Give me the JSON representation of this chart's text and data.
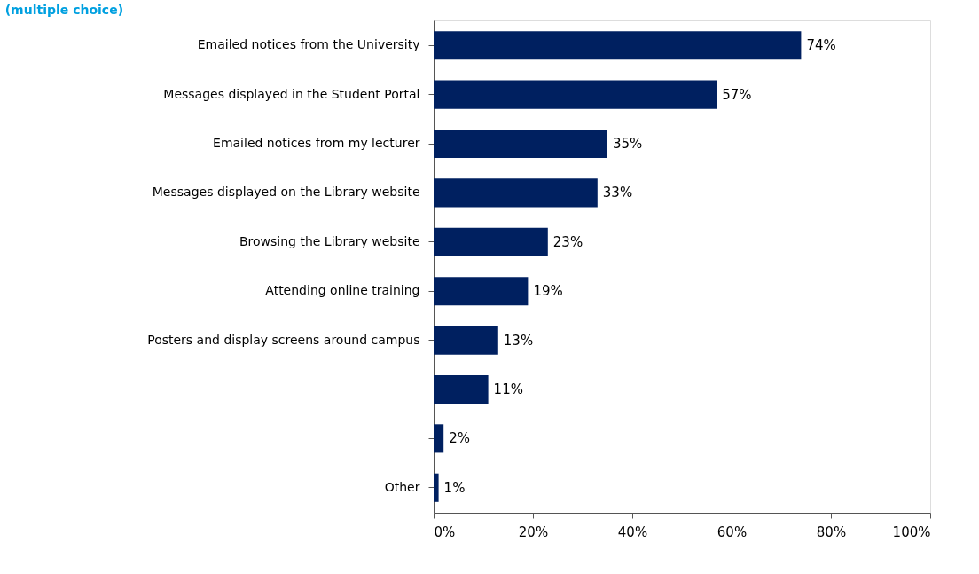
{
  "chart_data": {
    "type": "bar",
    "orientation": "horizontal",
    "subtitle": "(multiple choice)",
    "categories": [
      "Emailed notices from the University",
      "Messages displayed in the Student Portal",
      "Emailed notices from my lecturer",
      "Messages displayed on the Library website",
      "Browsing the Library website",
      "Attending online training",
      "Posters and display screens around campus",
      null,
      null,
      "Other"
    ],
    "values": [
      74,
      57,
      35,
      33,
      23,
      19,
      13,
      11,
      2,
      1
    ],
    "value_labels": [
      "74%",
      "57%",
      "35%",
      "33%",
      "23%",
      "19%",
      "13%",
      "11%",
      "2%",
      "1%"
    ],
    "color": "#002060",
    "xlim": [
      0,
      100
    ],
    "xticks": [
      {
        "value": 0,
        "label": "0%"
      },
      {
        "value": 20,
        "label": "20%"
      },
      {
        "value": 40,
        "label": "40%"
      },
      {
        "value": 60,
        "label": "60%"
      },
      {
        "value": 80,
        "label": "80%"
      },
      {
        "value": 100,
        "label": "100%"
      }
    ],
    "grid": false
  }
}
